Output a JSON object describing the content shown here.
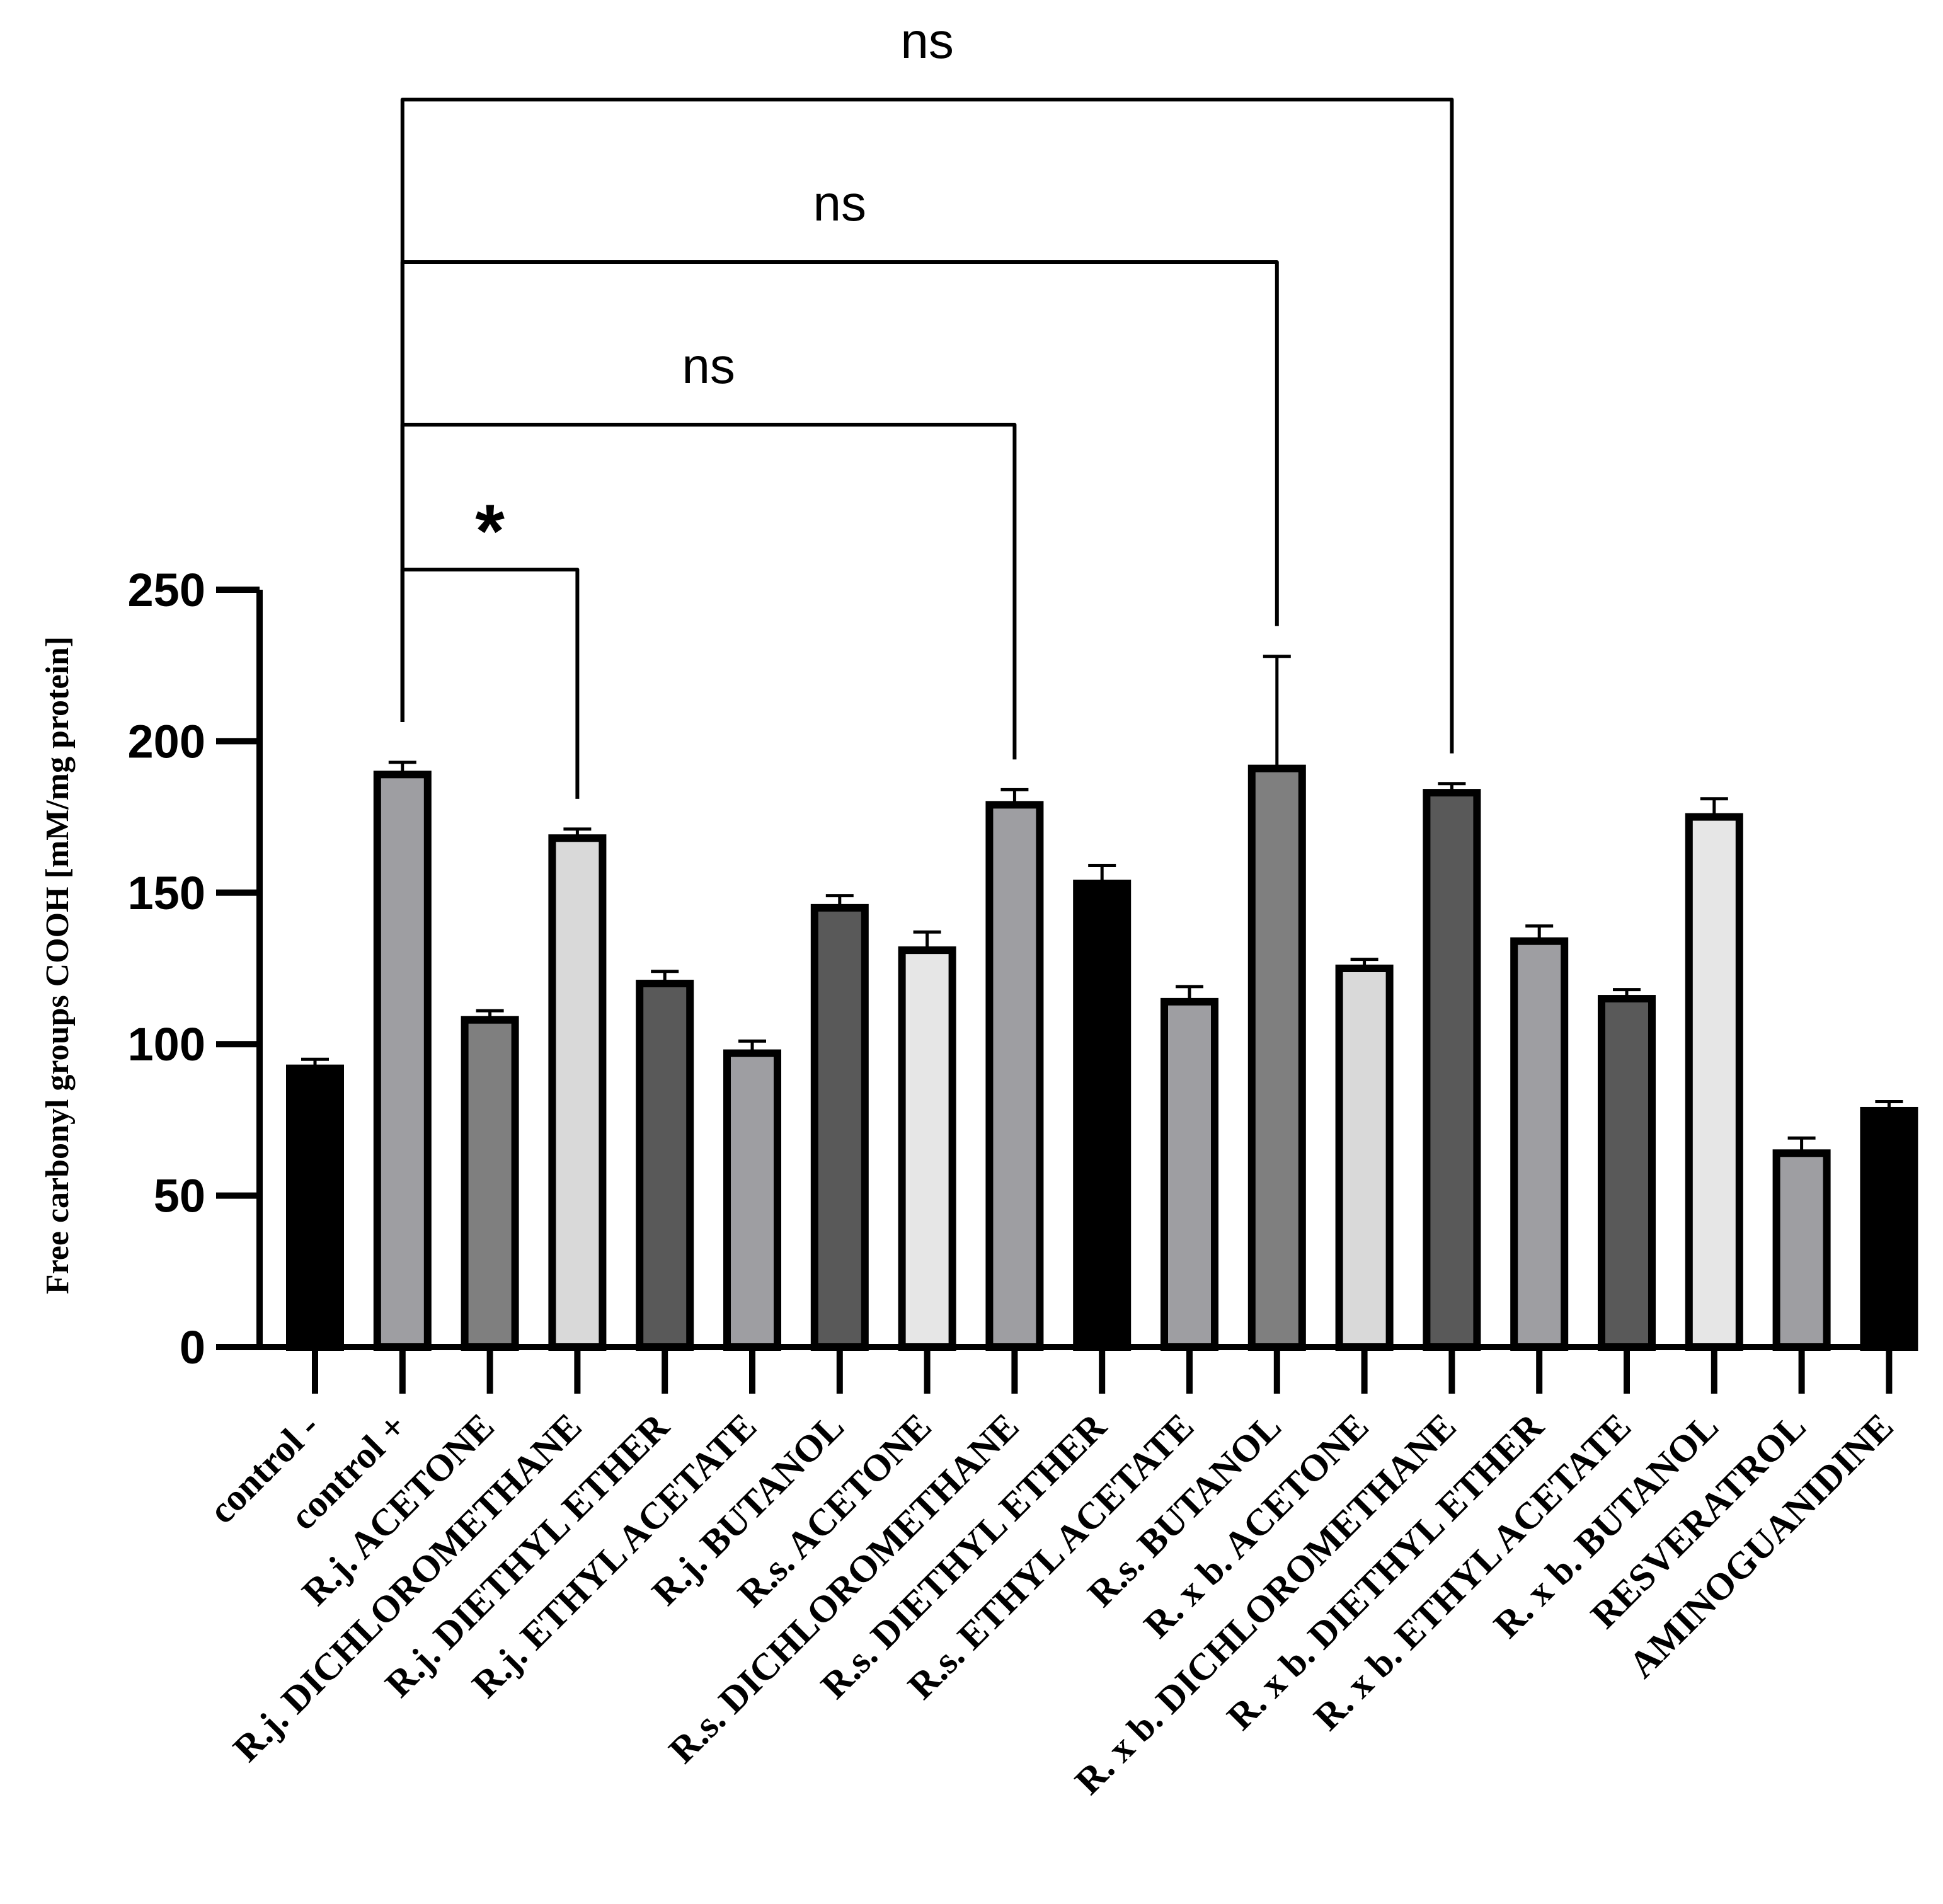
{
  "chart_data": {
    "type": "bar",
    "title": "",
    "xlabel": "",
    "ylabel": "Free carbonyl groups COOH [mM/mg protein]",
    "ylim": [
      0,
      250
    ],
    "yticks": [
      0,
      50,
      100,
      150,
      200,
      250
    ],
    "categories": [
      "control -",
      "control +",
      "R.j. ACETONE",
      "R.j. DICHLOROMETHANE",
      "R.j. DIETHYL ETHER",
      "R.j. ETHYL ACETATE",
      "R.j. BUTANOL",
      "R.s. ACETONE",
      "R.s. DICHLOROMETHANE",
      "R.s. DIETHYL ETHER",
      "R.s. ETHYL ACETATE",
      "R.s. BUTANOL",
      "R. x b. ACETONE",
      "R. x b. DICHLOROMETHANE",
      "R. x b.  DIETHYL ETHER",
      "R. x b.  ETHYL ACETATE",
      "R. x b. BUTANOL",
      "RESVERATROL",
      "AMINOGUANIDINE"
    ],
    "values": [
      92,
      189,
      108,
      168,
      120,
      97,
      145,
      131,
      179,
      153,
      114,
      191,
      125,
      183,
      134,
      115,
      175,
      64,
      78
    ],
    "errors": [
      3,
      4,
      3,
      3,
      4,
      4,
      4,
      6,
      5,
      6,
      5,
      37,
      3,
      3,
      5,
      3,
      6,
      5,
      3
    ],
    "colors": [
      "#000000",
      "#9e9ea2",
      "#7f7f7f",
      "#d9d9d9",
      "#595959",
      "#9e9ea2",
      "#595959",
      "#e6e6e6",
      "#9e9ea2",
      "#000000",
      "#9e9ea2",
      "#7f7f7f",
      "#d9d9d9",
      "#595959",
      "#9e9ea2",
      "#595959",
      "#e6e6e6",
      "#9e9ea2",
      "#000000"
    ],
    "comparisons": [
      {
        "from": "control +",
        "to": "R.j. DICHLOROMETHANE",
        "label": "*"
      },
      {
        "from": "control +",
        "to": "R.s. DICHLOROMETHANE",
        "label": "ns"
      },
      {
        "from": "control +",
        "to": "R.s. BUTANOL",
        "label": "ns"
      },
      {
        "from": "control +",
        "to": "R. x b. DICHLOROMETHANE",
        "label": "ns"
      }
    ]
  }
}
